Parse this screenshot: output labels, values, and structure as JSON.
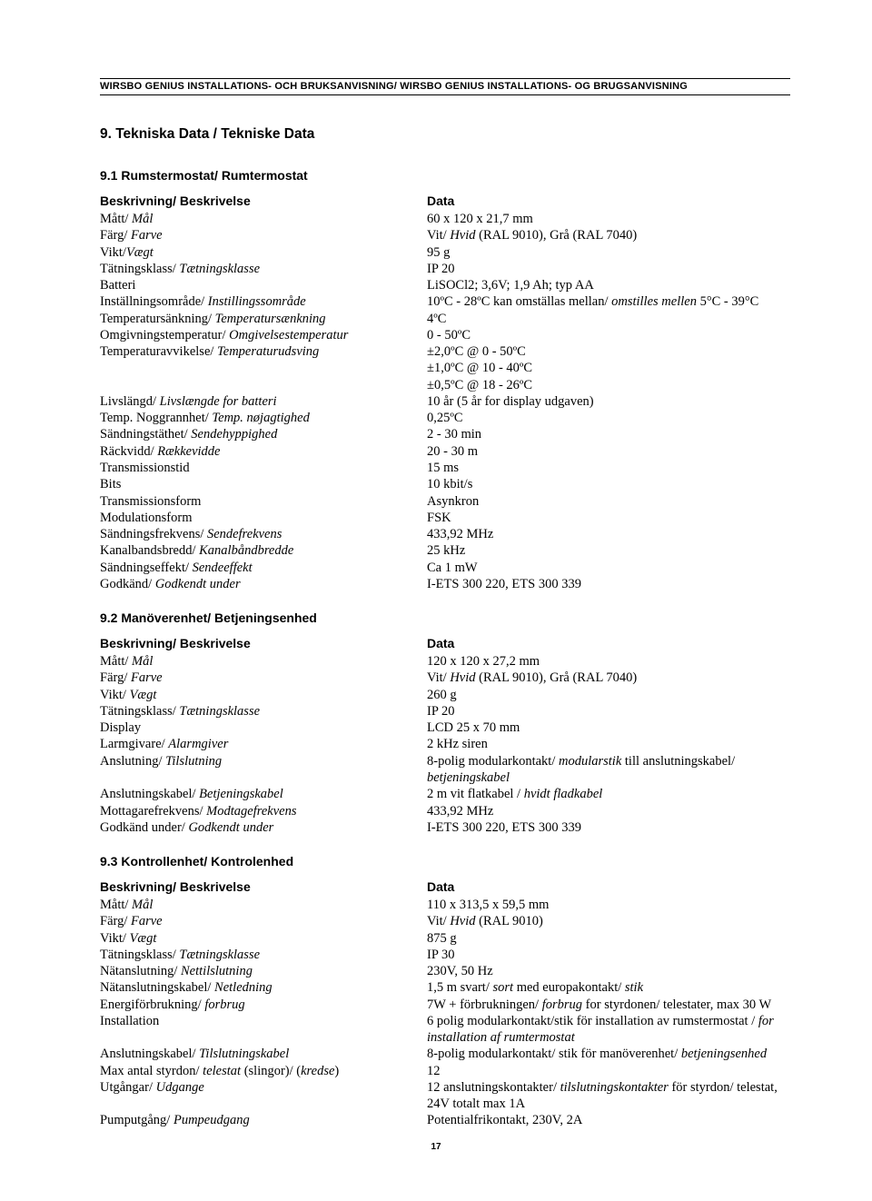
{
  "header": "WIRSBO GENIUS INSTALLATIONS- OCH BRUKSANVISNING/ WIRSBO GENIUS INSTALLATIONS- OG BRUGSANVISNING",
  "title": "9. Tekniska Data / Tekniske Data",
  "col_label": "Beskrivning/ Beskrivelse",
  "col_data": "Data",
  "page_number": "17",
  "sections": [
    {
      "heading": "9.1 Rumstermostat/ Rumtermostat",
      "rows": [
        {
          "l1": "Mått/ ",
          "l2": "Mål",
          "d": [
            [
              "60 x 120 x 21,7 mm",
              0
            ]
          ]
        },
        {
          "l1": "Färg/ ",
          "l2": "Farve",
          "d": [
            [
              "Vit/ ",
              0
            ],
            [
              "Hvid",
              1
            ],
            [
              " (RAL 9010), Grå (RAL 7040)",
              0
            ]
          ]
        },
        {
          "l1": "Vikt/",
          "l2": "Vægt",
          "d": [
            [
              "95 g",
              0
            ]
          ]
        },
        {
          "l1": "Tätningsklass/ ",
          "l2": "Tætningsklasse",
          "d": [
            [
              "IP 20",
              0
            ]
          ]
        },
        {
          "l1": "Batteri",
          "l2": "",
          "d": [
            [
              "LiSOCl2; 3,6V; 1,9 Ah; typ AA",
              0
            ]
          ]
        },
        {
          "l1": "Inställningsområde/ ",
          "l2": "Instillingssområde",
          "d": [
            [
              "10ºC - 28ºC kan omställas mellan/ ",
              0
            ],
            [
              "omstilles mellen",
              1
            ],
            [
              " 5°C - 39°C",
              0
            ]
          ]
        },
        {
          "l1": "Temperatursänkning/ ",
          "l2": "Temperatursænkning",
          "d": [
            [
              "4ºC",
              0
            ]
          ]
        },
        {
          "l1": "Omgivningstemperatur/ ",
          "l2": "Omgivelsestemperatur",
          "d": [
            [
              "0 - 50ºC",
              0
            ]
          ]
        },
        {
          "l1": "Temperaturavvikelse/ ",
          "l2": "Temperaturudsving",
          "d": [
            [
              "±2,0ºC @ 0 - 50ºC",
              0
            ]
          ]
        },
        {
          "l1": "",
          "l2": "",
          "d": [
            [
              "±1,0ºC @ 10 - 40ºC",
              0
            ]
          ]
        },
        {
          "l1": "",
          "l2": "",
          "d": [
            [
              "±0,5ºC @ 18 - 26ºC",
              0
            ]
          ]
        },
        {
          "l1": "Livslängd/ ",
          "l2": "Livslængde for batteri",
          "d": [
            [
              "10 år (5 år for display udgaven)",
              0
            ]
          ]
        },
        {
          "l1": "Temp. Noggrannhet/ ",
          "l2": "Temp. nøjagtighed",
          "d": [
            [
              "0,25ºC",
              0
            ]
          ]
        },
        {
          "l1": "Sändningstäthet/ ",
          "l2": "Sendehyppighed",
          "d": [
            [
              "2 - 30 min",
              0
            ]
          ]
        },
        {
          "l1": "Räckvidd/ ",
          "l2": "Rækkevidde",
          "d": [
            [
              "20 - 30 m",
              0
            ]
          ]
        },
        {
          "l1": "Transmissionstid",
          "l2": "",
          "d": [
            [
              "15 ms",
              0
            ]
          ]
        },
        {
          "l1": "Bits",
          "l2": "",
          "d": [
            [
              "10 kbit/s",
              0
            ]
          ]
        },
        {
          "l1": "Transmissionsform",
          "l2": "",
          "d": [
            [
              "Asynkron",
              0
            ]
          ]
        },
        {
          "l1": "Modulationsform",
          "l2": "",
          "d": [
            [
              "FSK",
              0
            ]
          ]
        },
        {
          "l1": "Sändningsfrekvens/ ",
          "l2": "Sendefrekvens",
          "d": [
            [
              "433,92 MHz",
              0
            ]
          ]
        },
        {
          "l1": "Kanalbandsbredd/ ",
          "l2": "Kanalbåndbredde",
          "d": [
            [
              "25 kHz",
              0
            ]
          ]
        },
        {
          "l1": "Sändningseffekt/ ",
          "l2": "Sendeeffekt",
          "d": [
            [
              "Ca 1 mW",
              0
            ]
          ]
        },
        {
          "l1": "Godkänd/ ",
          "l2": "Godkendt under",
          "d": [
            [
              "I-ETS 300 220, ETS 300 339",
              0
            ]
          ]
        }
      ]
    },
    {
      "heading": "9.2 Manöverenhet/ Betjeningsenhed",
      "rows": [
        {
          "l1": "Mått/ ",
          "l2": "Mål",
          "d": [
            [
              "120 x 120 x 27,2 mm",
              0
            ]
          ]
        },
        {
          "l1": "Färg/ ",
          "l2": "Farve",
          "d": [
            [
              "Vit/ ",
              0
            ],
            [
              "Hvid",
              1
            ],
            [
              " (RAL 9010), Grå (RAL 7040)",
              0
            ]
          ]
        },
        {
          "l1": "Vikt/ ",
          "l2": "Vægt",
          "d": [
            [
              "260 g",
              0
            ]
          ]
        },
        {
          "l1": "Tätningsklass/ ",
          "l2": "Tætningsklasse",
          "d": [
            [
              "IP 20",
              0
            ]
          ]
        },
        {
          "l1": "Display",
          "l2": "",
          "d": [
            [
              "LCD 25 x 70 mm",
              0
            ]
          ]
        },
        {
          "l1": "Larmgivare/ ",
          "l2": "Alarmgiver",
          "d": [
            [
              "2 kHz siren",
              0
            ]
          ]
        },
        {
          "l1": "Anslutning/ ",
          "l2": "Tilslutning",
          "d": [
            [
              "8-polig modularkontakt/ ",
              0
            ],
            [
              "modularstik",
              1
            ],
            [
              " till anslutningskabel/ ",
              0
            ],
            [
              "betjeningskabel",
              1
            ]
          ]
        },
        {
          "l1": "Anslutningskabel/ ",
          "l2": "Betjeningskabel",
          "d": [
            [
              "2 m vit flatkabel / ",
              0
            ],
            [
              "hvidt fladkabel",
              1
            ]
          ]
        },
        {
          "l1": "Mottagarefrekvens/ ",
          "l2": "Modtagefrekvens",
          "d": [
            [
              "433,92 MHz",
              0
            ]
          ]
        },
        {
          "l1": "Godkänd under/ ",
          "l2": "Godkendt under",
          "d": [
            [
              "I-ETS 300 220, ETS 300 339",
              0
            ]
          ]
        }
      ]
    },
    {
      "heading": "9.3 Kontrollenhet/ Kontrolenhed",
      "rows": [
        {
          "l1": "Mått/ ",
          "l2": "Mål",
          "d": [
            [
              "110 x 313,5 x 59,5 mm",
              0
            ]
          ]
        },
        {
          "l1": "Färg/ ",
          "l2": "Farve",
          "d": [
            [
              "Vit/ ",
              0
            ],
            [
              "Hvid",
              1
            ],
            [
              " (RAL 9010)",
              0
            ]
          ]
        },
        {
          "l1": "Vikt/ ",
          "l2": "Vægt",
          "d": [
            [
              "875 g",
              0
            ]
          ]
        },
        {
          "l1": "Tätningsklass/ ",
          "l2": "Tætningsklasse",
          "d": [
            [
              "IP 30",
              0
            ]
          ]
        },
        {
          "l1": "Nätanslutning/ ",
          "l2": "Nettilslutning",
          "d": [
            [
              "230V, 50 Hz",
              0
            ]
          ]
        },
        {
          "l1": "Nätanslutningskabel/ ",
          "l2": "Netledning",
          "d": [
            [
              "1,5 m svart/ ",
              0
            ],
            [
              "sort",
              1
            ],
            [
              " med europakontakt/ ",
              0
            ],
            [
              "stik",
              1
            ]
          ]
        },
        {
          "l1": "Energiförbrukning/ ",
          "l2": "forbrug",
          "d": [
            [
              "7W + förbrukningen/ ",
              0
            ],
            [
              "forbrug",
              1
            ],
            [
              " for styrdonen/ telestater, max 30 W",
              0
            ]
          ]
        },
        {
          "l1": "Installation",
          "l2": "",
          "d": [
            [
              "6 polig modularkontakt/stik  för installation av rumstermostat / ",
              0
            ],
            [
              "for installation af rumtermostat",
              1
            ]
          ]
        },
        {
          "l1": "Anslutningskabel/ ",
          "l2": "Tilslutningskabel",
          "d": [
            [
              "8-polig modularkontakt/ stik för manöverenhet/ ",
              0
            ],
            [
              "betjeningsenhed",
              1
            ]
          ]
        },
        {
          "l1": "Max antal styrdon/ ",
          "l2": "telestat",
          "lextra": [
            [
              " (slingor)/ (",
              0
            ],
            [
              "kredse",
              1
            ],
            [
              ")",
              0
            ]
          ],
          "d": [
            [
              "12",
              0
            ]
          ]
        },
        {
          "l1": "Utgångar/ ",
          "l2": "Udgange",
          "d": [
            [
              "12 anslutningskontakter/ ",
              0
            ],
            [
              "tilslutningskontakter",
              1
            ],
            [
              " för styrdon/ telestat, 24V totalt max 1A",
              0
            ]
          ]
        },
        {
          "l1": "Pumputgång/ ",
          "l2": "Pumpeudgang",
          "d": [
            [
              "Potentialfrikontakt, 230V, 2A",
              0
            ]
          ]
        }
      ]
    }
  ]
}
